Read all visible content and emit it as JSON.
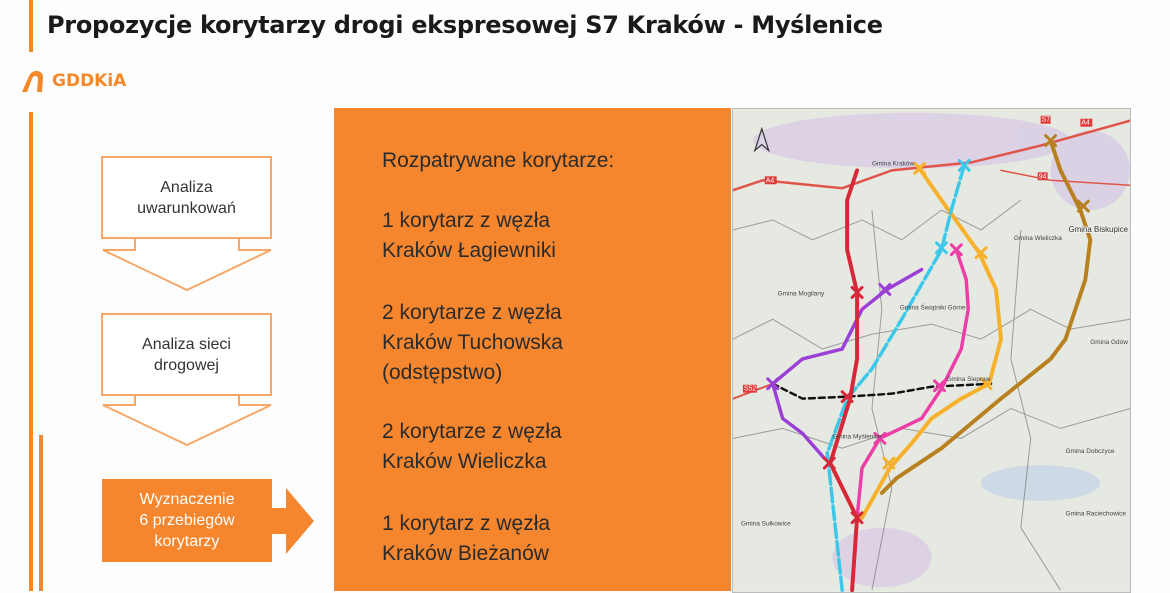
{
  "title": "Propozycje korytarzy drogi ekspresowej S7 Kraków - Myślenice",
  "logo": {
    "text": "GDDKiA"
  },
  "flow": {
    "step1": [
      "Analiza",
      "uwarunkowań"
    ],
    "step2": [
      "Analiza sieci",
      "drogowej"
    ],
    "step3": [
      "Wyznaczenie",
      "6 przebiegów",
      "korytarzy"
    ]
  },
  "panel": {
    "heading": "Rozpatrywane korytarze:",
    "items": [
      [
        "1 korytarz z węzła",
        "Kraków Łagiewniki"
      ],
      [
        "2 korytarze z węzła",
        "Kraków Tuchowska",
        "(odstępstwo)"
      ],
      [
        "2 korytarze z węzła",
        "Kraków Wieliczka"
      ],
      [
        "1 korytarz z węzła",
        "Kraków Bieżanów"
      ]
    ]
  },
  "map": {
    "labels": [
      "Gmina Kraków",
      "Gmina Mogilany",
      "Gmina Świątniki Górne",
      "Gmina Wieliczka",
      "Gmina Biskupice",
      "Gmina Gdów",
      "Gmina Siepraw",
      "Gmina Myślenice",
      "Gmina Dobczyce",
      "Gmina Sułkowice",
      "Gmina Raciechowice"
    ],
    "roads": [
      "A4",
      "A4",
      "S7",
      "94",
      "S52"
    ],
    "colors": {
      "red": "#d62839",
      "purple": "#9b3fd6",
      "cyan": "#3cc8e8",
      "pink": "#ec3ea6",
      "yellow": "#f7b12c",
      "brown": "#b8801e",
      "accent": "#f5862e"
    }
  }
}
